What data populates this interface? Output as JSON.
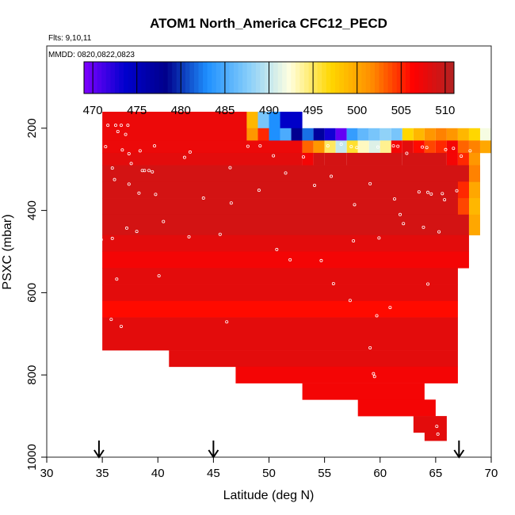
{
  "chart_data": {
    "type": "heatmap",
    "title": "ATOM1 North_America CFC12_PECD",
    "annotations": [
      "Flts: 9,10,11",
      "MMDD: 0820,0822,0823"
    ],
    "xlabel": "Latitude (deg N)",
    "ylabel": "PSXC (mbar)",
    "xlim": [
      30,
      70
    ],
    "ylim": [
      1000,
      0
    ],
    "xticks": [
      30,
      35,
      40,
      45,
      50,
      55,
      60,
      65,
      70
    ],
    "yticks": [
      200,
      400,
      600,
      800,
      1000
    ],
    "colorbar": {
      "min": 469,
      "max": 511,
      "ticks": [
        470,
        475,
        480,
        485,
        490,
        495,
        500,
        505,
        510
      ],
      "stops": [
        "#7f00ff",
        "#0000cd",
        "#00008b",
        "#1e90ff",
        "#87cefa",
        "#ffffe0",
        "#ffd700",
        "#ff8c00",
        "#ff0000",
        "#b22222"
      ]
    },
    "arrows_latitude": [
      34.7,
      45,
      67.1
    ],
    "rows": [
      {
        "p": [
          160,
          180
        ],
        "segments": [
          [
            35,
            48,
            507.5
          ],
          [
            48,
            49,
            499
          ],
          [
            49,
            50,
            487
          ],
          [
            50,
            51,
            483
          ],
          [
            51,
            53,
            474
          ]
        ]
      },
      {
        "p": [
          180,
          200
        ],
        "segments": [
          [
            35,
            48,
            507.5
          ],
          [
            48,
            49,
            499
          ],
          [
            49,
            50,
            487
          ],
          [
            50,
            51,
            483
          ],
          [
            51,
            53,
            474
          ]
        ]
      },
      {
        "p": [
          200,
          230
        ],
        "segments": [
          [
            35,
            48,
            507.5
          ],
          [
            48,
            49,
            501
          ],
          [
            49,
            50,
            505
          ],
          [
            50,
            51,
            483
          ],
          [
            51,
            52,
            485
          ],
          [
            52,
            53,
            478
          ],
          [
            53,
            54,
            482
          ],
          [
            54,
            55,
            477
          ],
          [
            55,
            56,
            473
          ],
          [
            56,
            57,
            470
          ],
          [
            57,
            58,
            484
          ],
          [
            58,
            59,
            486
          ],
          [
            59,
            60,
            487
          ],
          [
            60,
            61,
            488
          ],
          [
            61,
            62,
            487
          ],
          [
            62,
            63,
            497
          ],
          [
            63,
            64,
            499
          ],
          [
            64,
            65,
            501
          ],
          [
            65,
            66,
            502
          ],
          [
            66,
            67,
            501
          ],
          [
            67,
            68,
            499
          ],
          [
            68,
            69,
            497
          ],
          [
            69,
            70,
            492
          ]
        ]
      },
      {
        "p": [
          230,
          260
        ],
        "segments": [
          [
            35,
            53,
            507.5
          ],
          [
            53,
            54,
            503
          ],
          [
            54,
            55,
            501
          ],
          [
            55,
            56,
            495
          ],
          [
            56,
            57,
            490
          ],
          [
            57,
            58,
            496
          ],
          [
            58,
            59,
            493
          ],
          [
            59,
            60,
            491
          ],
          [
            60,
            61,
            494
          ],
          [
            61,
            62,
            507
          ],
          [
            62,
            63,
            508
          ],
          [
            63,
            64,
            506
          ],
          [
            64,
            65,
            504
          ],
          [
            65,
            66,
            505
          ],
          [
            66,
            67,
            507
          ],
          [
            67,
            68,
            503
          ],
          [
            68,
            69,
            502
          ],
          [
            69,
            70,
            500
          ]
        ]
      },
      {
        "p": [
          260,
          290
        ],
        "segments": [
          [
            35,
            53,
            508
          ],
          [
            53,
            54,
            507
          ],
          [
            54,
            55,
            509
          ],
          [
            55,
            57,
            509
          ],
          [
            57,
            62,
            509
          ],
          [
            62,
            66,
            509
          ],
          [
            66,
            67,
            507
          ],
          [
            67,
            68,
            505
          ],
          [
            68,
            69,
            501
          ]
        ]
      },
      {
        "p": [
          290,
          330
        ],
        "segments": [
          [
            35,
            69,
            509
          ],
          [
            68,
            69,
            502
          ]
        ]
      },
      {
        "p": [
          330,
          370
        ],
        "segments": [
          [
            35,
            69,
            509
          ],
          [
            67,
            68,
            505
          ],
          [
            68,
            69,
            500
          ]
        ]
      },
      {
        "p": [
          370,
          410
        ],
        "segments": [
          [
            35,
            68,
            509
          ],
          [
            67,
            68,
            504
          ],
          [
            68,
            69,
            499
          ]
        ]
      },
      {
        "p": [
          410,
          460
        ],
        "segments": [
          [
            35,
            68,
            509
          ],
          [
            68,
            69,
            500
          ]
        ]
      },
      {
        "p": [
          460,
          500
        ],
        "segments": [
          [
            35,
            68,
            508
          ]
        ]
      },
      {
        "p": [
          500,
          540
        ],
        "segments": [
          [
            35,
            68,
            507
          ]
        ]
      },
      {
        "p": [
          540,
          580
        ],
        "segments": [
          [
            35,
            67,
            508
          ]
        ]
      },
      {
        "p": [
          580,
          620
        ],
        "segments": [
          [
            35,
            67,
            508
          ]
        ]
      },
      {
        "p": [
          620,
          660
        ],
        "segments": [
          [
            35,
            67,
            506
          ]
        ]
      },
      {
        "p": [
          660,
          700
        ],
        "segments": [
          [
            35,
            67,
            508
          ]
        ]
      },
      {
        "p": [
          700,
          740
        ],
        "segments": [
          [
            35,
            67,
            508
          ]
        ]
      },
      {
        "p": [
          740,
          780
        ],
        "segments": [
          [
            41,
            67,
            508
          ]
        ]
      },
      {
        "p": [
          780,
          820
        ],
        "segments": [
          [
            47,
            67,
            507
          ]
        ]
      },
      {
        "p": [
          820,
          860
        ],
        "segments": [
          [
            53,
            64,
            507
          ]
        ]
      },
      {
        "p": [
          860,
          900
        ],
        "segments": [
          [
            58,
            65,
            507
          ]
        ]
      },
      {
        "p": [
          900,
          940
        ],
        "segments": [
          [
            63,
            66,
            508
          ]
        ]
      },
      {
        "p": [
          940,
          960
        ],
        "segments": [
          [
            64,
            66,
            508
          ]
        ]
      }
    ],
    "points": [
      [
        35.5,
        193
      ],
      [
        36.2,
        193
      ],
      [
        36.7,
        193
      ],
      [
        37.3,
        193
      ],
      [
        36.4,
        208
      ],
      [
        37.1,
        215
      ],
      [
        35.3,
        245
      ],
      [
        36.8,
        253
      ],
      [
        37.4,
        262
      ],
      [
        38.4,
        255
      ],
      [
        42.9,
        258
      ],
      [
        42.4,
        271
      ],
      [
        39.7,
        243
      ],
      [
        46.5,
        296
      ],
      [
        48.1,
        244
      ],
      [
        49.2,
        243
      ],
      [
        50.4,
        267
      ],
      [
        53.1,
        270
      ],
      [
        55.3,
        243
      ],
      [
        56.5,
        239
      ],
      [
        57.4,
        245
      ],
      [
        57.9,
        247
      ],
      [
        59.8,
        246
      ],
      [
        61.2,
        243
      ],
      [
        61.6,
        244
      ],
      [
        62.4,
        261
      ],
      [
        63.8,
        246
      ],
      [
        64.2,
        247
      ],
      [
        65.9,
        252
      ],
      [
        66.6,
        249
      ],
      [
        67.3,
        268
      ],
      [
        68.1,
        255
      ],
      [
        35.9,
        297
      ],
      [
        37.6,
        286
      ],
      [
        38.6,
        303
      ],
      [
        39.5,
        306
      ],
      [
        39.2,
        303
      ],
      [
        38.8,
        303
      ],
      [
        36.1,
        325
      ],
      [
        37.4,
        336
      ],
      [
        38.3,
        358
      ],
      [
        39.8,
        361
      ],
      [
        44.1,
        370
      ],
      [
        46.6,
        382
      ],
      [
        49.1,
        351
      ],
      [
        51.5,
        309
      ],
      [
        54.1,
        339
      ],
      [
        55.6,
        317
      ],
      [
        57.7,
        386
      ],
      [
        59.1,
        335
      ],
      [
        61.8,
        410
      ],
      [
        63.5,
        355
      ],
      [
        64.3,
        356
      ],
      [
        64.6,
        360
      ],
      [
        65.6,
        359
      ],
      [
        66.9,
        352
      ],
      [
        65.8,
        374
      ],
      [
        61.3,
        372
      ],
      [
        34.9,
        471
      ],
      [
        35.9,
        468
      ],
      [
        37.2,
        443
      ],
      [
        38.1,
        451
      ],
      [
        40.5,
        427
      ],
      [
        42.8,
        464
      ],
      [
        45.6,
        458
      ],
      [
        50.7,
        495
      ],
      [
        51.9,
        520
      ],
      [
        54.7,
        522
      ],
      [
        57.6,
        474
      ],
      [
        59.9,
        467
      ],
      [
        62.1,
        432
      ],
      [
        63.9,
        441
      ],
      [
        65.3,
        452
      ],
      [
        34.8,
        562
      ],
      [
        36.3,
        567
      ],
      [
        40.1,
        559
      ],
      [
        55.8,
        578
      ],
      [
        57.3,
        619
      ],
      [
        59.7,
        656
      ],
      [
        60.9,
        636
      ],
      [
        64.3,
        579
      ],
      [
        35.8,
        665
      ],
      [
        36.7,
        682
      ],
      [
        46.2,
        671
      ],
      [
        59.1,
        734
      ],
      [
        59.4,
        797
      ],
      [
        59.5,
        804
      ],
      [
        65.1,
        925
      ],
      [
        65.2,
        944
      ],
      [
        67.2,
        667
      ]
    ]
  }
}
